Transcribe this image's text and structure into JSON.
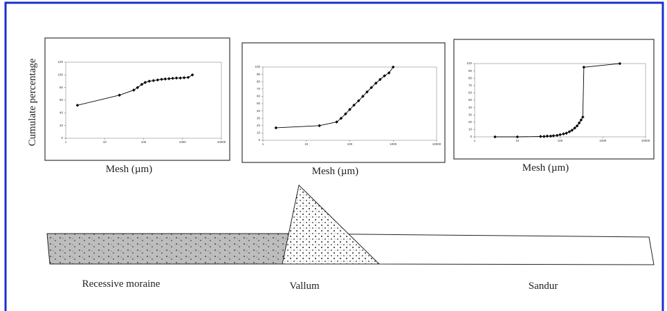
{
  "y_label": "Cumulate percentage",
  "chart_data": [
    {
      "type": "line",
      "x_label": "Mesh (µm)",
      "xscale": "log",
      "color": "#000000",
      "xlim": [
        1,
        10000
      ],
      "xticks": [
        1,
        10,
        100,
        1000,
        10000
      ],
      "ylim": [
        0,
        120
      ],
      "yticks": [
        0,
        20,
        40,
        60,
        80,
        100,
        120
      ],
      "x": [
        2,
        24,
        56,
        70,
        90,
        110,
        140,
        180,
        230,
        290,
        360,
        450,
        560,
        700,
        880,
        1100,
        1400,
        1800
      ],
      "values": [
        52,
        68,
        76,
        80,
        85,
        88,
        90,
        91,
        92,
        93,
        93.5,
        94,
        94.5,
        95,
        95,
        95.5,
        96,
        100
      ]
    },
    {
      "type": "line",
      "x_label": "Mesh (µm)",
      "xscale": "log",
      "color": "#000000",
      "xlim": [
        1,
        10000
      ],
      "xticks": [
        1,
        10,
        100,
        1000,
        10000
      ],
      "ylim": [
        0,
        100
      ],
      "yticks": [
        0,
        10,
        20,
        30,
        40,
        50,
        60,
        70,
        80,
        90,
        100
      ],
      "x": [
        2,
        20,
        50,
        63,
        80,
        100,
        125,
        160,
        200,
        250,
        315,
        400,
        500,
        630,
        800,
        1000
      ],
      "values": [
        17,
        20,
        25,
        30,
        36,
        42,
        48,
        54,
        60,
        66,
        72,
        78,
        83,
        88,
        92,
        100
      ]
    },
    {
      "type": "line",
      "x_label": "Mesh (µm)",
      "xscale": "log",
      "color": "#000000",
      "xlim": [
        1,
        10000
      ],
      "xticks": [
        1,
        10,
        100,
        1000,
        10000
      ],
      "ylim": [
        0,
        100
      ],
      "yticks": [
        0,
        10,
        20,
        30,
        40,
        50,
        60,
        70,
        80,
        90,
        100
      ],
      "x": [
        3,
        10,
        35,
        42,
        50,
        60,
        70,
        85,
        100,
        120,
        140,
        165,
        190,
        220,
        250,
        280,
        310,
        340,
        360,
        2500
      ],
      "values": [
        0,
        0,
        0.5,
        0.5,
        1,
        1,
        1.5,
        2,
        3,
        4,
        5,
        7,
        9,
        12,
        15,
        19,
        23,
        27,
        95,
        100
      ]
    }
  ],
  "diagram": {
    "labels": [
      "Recessive moraine",
      "Vallum",
      "Sandur"
    ]
  }
}
